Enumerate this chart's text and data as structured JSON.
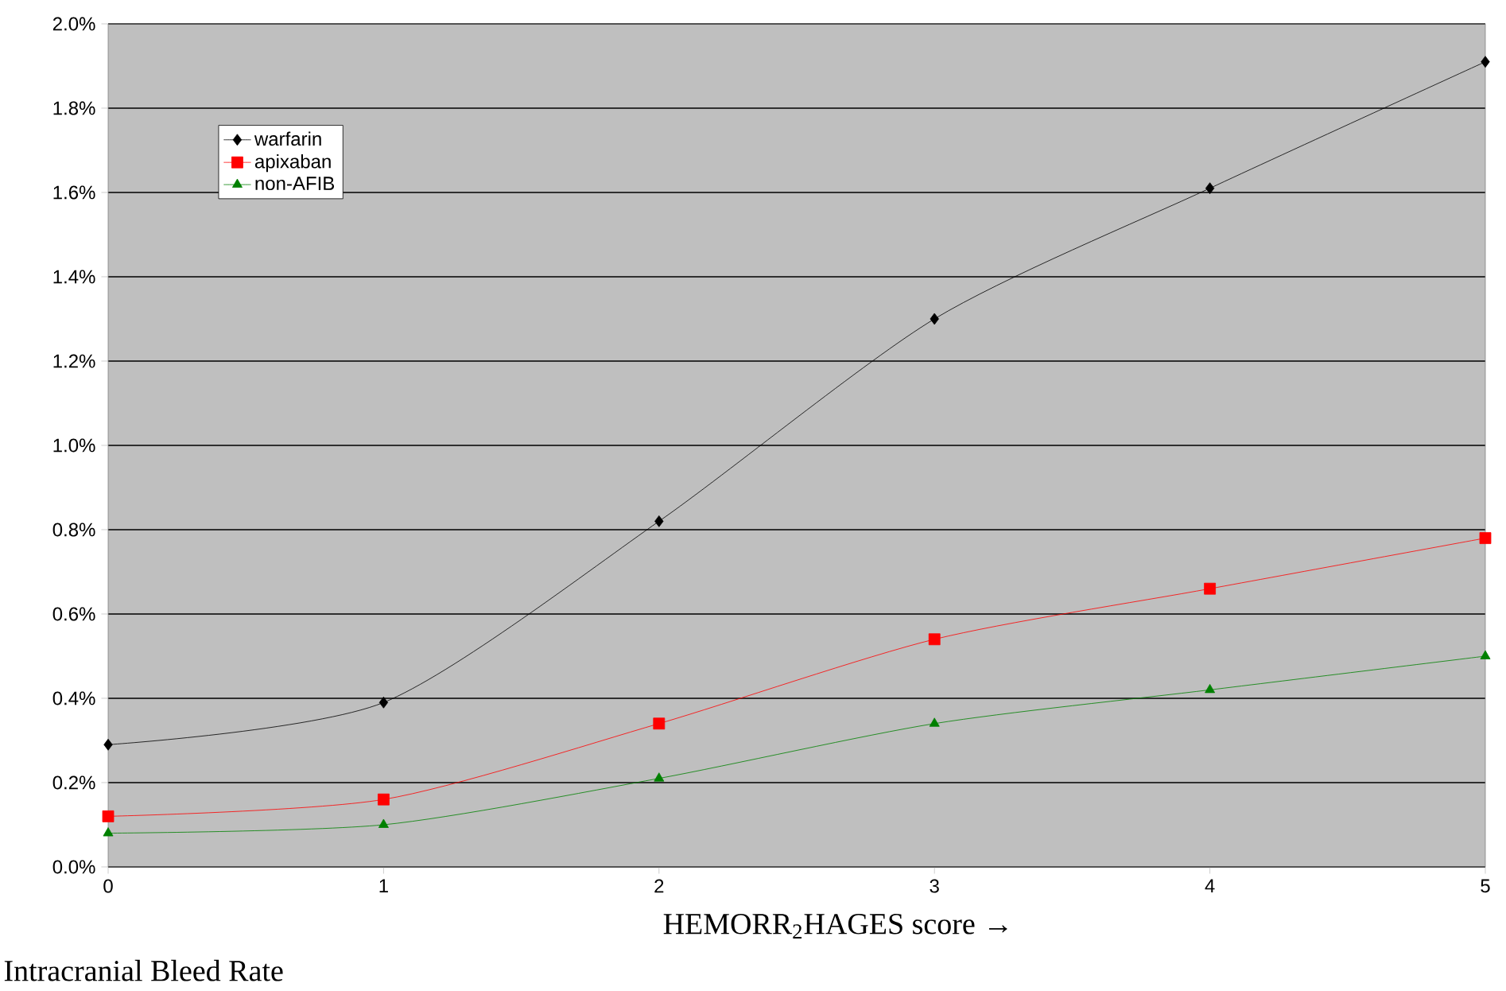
{
  "chart_data": {
    "type": "line",
    "xlabel": "HEMORR$_{2}$HAGES score →",
    "annotations": [
      "Intracranial Bleed Rate"
    ],
    "x": [
      0,
      1,
      2,
      3,
      4,
      5
    ],
    "series": [
      {
        "name": "warfarin",
        "color": "#000000",
        "marker": "diamond",
        "values": [
          0.29,
          0.39,
          0.82,
          1.3,
          1.61,
          1.91
        ]
      },
      {
        "name": "apixaban",
        "color": "#ff0000",
        "marker": "square",
        "values": [
          0.12,
          0.16,
          0.34,
          0.54,
          0.66,
          0.78
        ]
      },
      {
        "name": "non-AFIB",
        "color": "#008000",
        "marker": "triangle",
        "values": [
          0.08,
          0.1,
          0.21,
          0.34,
          0.42,
          0.5
        ]
      }
    ],
    "xlim": [
      0,
      5
    ],
    "xticks": [
      0,
      1,
      2,
      3,
      4,
      5
    ],
    "ylim": [
      0,
      2.0
    ],
    "yticks": [
      {
        "value": 0,
        "label": "0.0%"
      },
      {
        "value": 0.2,
        "label": "0.2%"
      },
      {
        "value": 0.4,
        "label": "0.4%"
      },
      {
        "value": 0.6,
        "label": "0.6%"
      },
      {
        "value": 0.8,
        "label": "0.8%"
      },
      {
        "value": 1.0,
        "label": "1.0%"
      },
      {
        "value": 1.2,
        "label": "1.2%"
      },
      {
        "value": 1.4,
        "label": "1.4%"
      },
      {
        "value": 1.6,
        "label": "1.6%"
      },
      {
        "value": 1.8,
        "label": "1.8%"
      },
      {
        "value": 2.0,
        "label": "2.0%"
      }
    ],
    "grid": "y",
    "legend": "top left",
    "line_style": "solid"
  }
}
